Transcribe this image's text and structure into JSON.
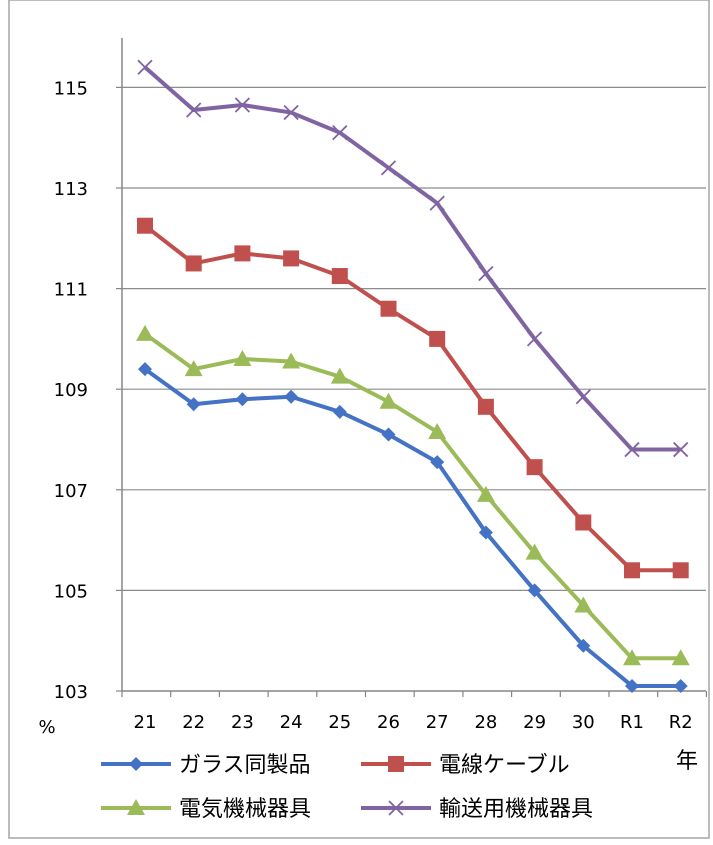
{
  "chart_data": {
    "type": "line",
    "categories": [
      "21",
      "22",
      "23",
      "24",
      "25",
      "26",
      "27",
      "28",
      "29",
      "30",
      "R1",
      "R2"
    ],
    "yticks": [
      "103",
      "105",
      "107",
      "109",
      "111",
      "113",
      "115"
    ],
    "ylim": [
      103,
      116
    ],
    "y_unit_label": "%",
    "x_unit_label": "年",
    "grid": true,
    "legend_position": "bottom",
    "series": [
      {
        "name": "ガラス同製品",
        "color": "#4472C4",
        "marker": "diamond",
        "values": [
          109.4,
          108.7,
          108.8,
          108.85,
          108.55,
          108.1,
          107.55,
          106.15,
          105.0,
          103.9,
          103.1,
          103.1
        ]
      },
      {
        "name": "電線ケーブル",
        "color": "#C0504D",
        "marker": "square",
        "values": [
          112.25,
          111.5,
          111.7,
          111.6,
          111.25,
          110.6,
          110.0,
          108.65,
          107.45,
          106.35,
          105.4,
          105.4
        ]
      },
      {
        "name": "電気機械器具",
        "color": "#9BBB59",
        "marker": "triangle",
        "values": [
          110.1,
          109.4,
          109.6,
          109.55,
          109.25,
          108.75,
          108.15,
          106.9,
          105.75,
          104.7,
          103.65,
          103.65
        ]
      },
      {
        "name": "輸送用機械器具",
        "color": "#8064A2",
        "marker": "x",
        "values": [
          115.4,
          114.55,
          114.65,
          114.5,
          114.1,
          113.4,
          112.7,
          111.3,
          110.0,
          108.85,
          107.8,
          107.8
        ]
      }
    ]
  }
}
